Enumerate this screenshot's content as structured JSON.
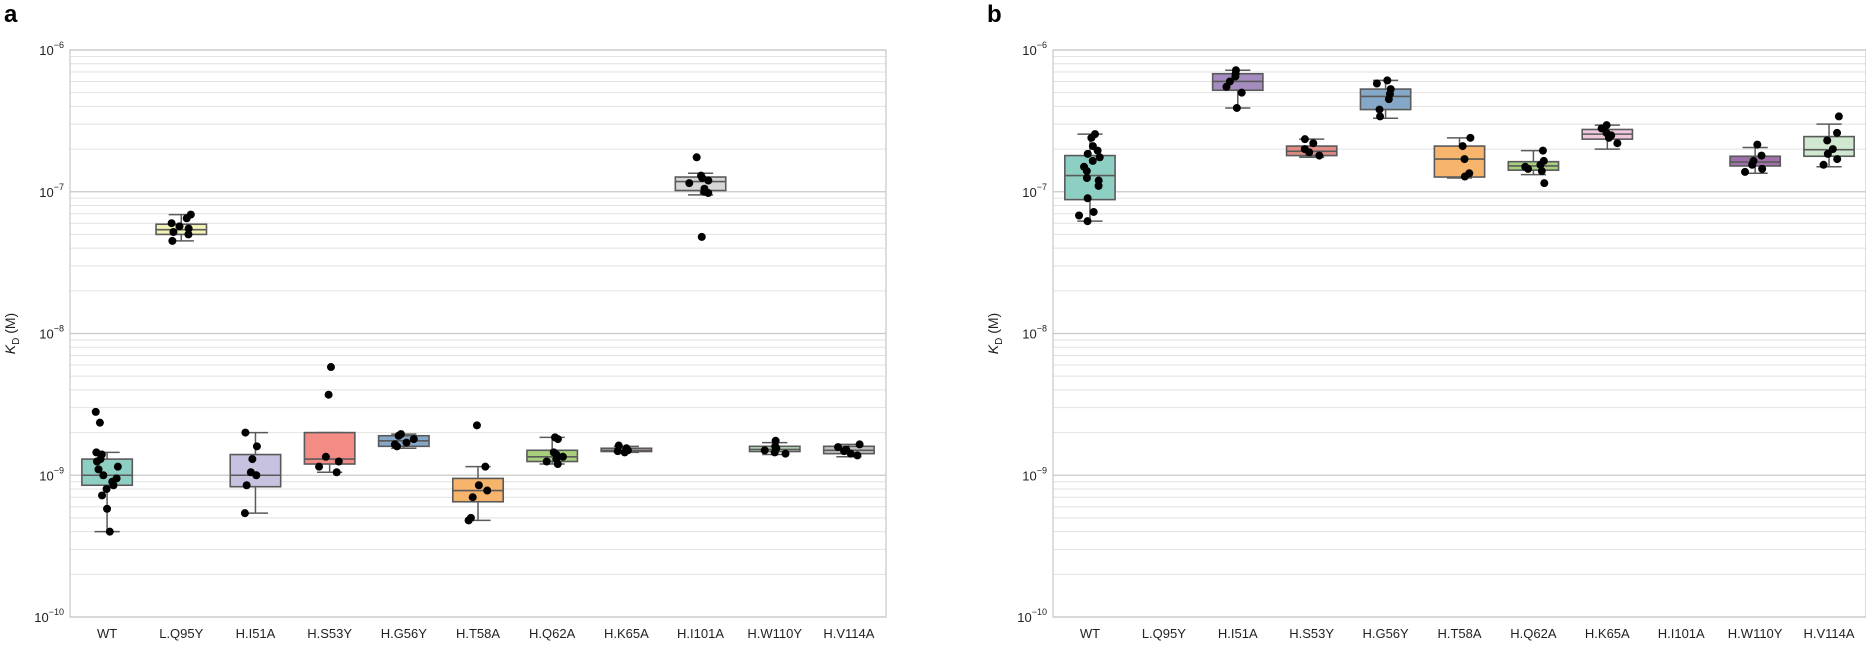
{
  "chart_data": [
    {
      "panel": "a",
      "type": "box",
      "ylabel": "K_D (M)",
      "ylabel_main": "K",
      "ylabel_sub": "D",
      "ylabel_unit": " (M)",
      "yscale": "log",
      "ylim": [
        1e-10,
        1e-06
      ],
      "y_ticks": [
        1e-10,
        1e-09,
        1e-08,
        1e-07,
        1e-06
      ],
      "y_tick_labels": [
        {
          "base": "10",
          "exp": "−10"
        },
        {
          "base": "10",
          "exp": "−9"
        },
        {
          "base": "10",
          "exp": "−8"
        },
        {
          "base": "10",
          "exp": "−7"
        },
        {
          "base": "10",
          "exp": "−6"
        }
      ],
      "grid": true,
      "categories": [
        "WT",
        "L.Q95Y",
        "H.I51A",
        "H.S53Y",
        "H.G56Y",
        "H.T58A",
        "H.Q62A",
        "H.K65A",
        "H.I101A",
        "H.W110Y",
        "H.V114A"
      ],
      "groups": [
        {
          "color": "#8ecfc3",
          "q1": 8.5e-10,
          "median": 1e-09,
          "q3": 1.3e-09,
          "whislo": 4e-10,
          "whishi": 1.45e-09,
          "points": [
            2.8e-09,
            2.35e-09,
            1.45e-09,
            1.4e-09,
            1.3e-09,
            1.25e-09,
            1.15e-09,
            1.1e-09,
            1e-09,
            9.5e-10,
            9e-10,
            8.5e-10,
            8e-10,
            7.2e-10,
            5.8e-10,
            4e-10
          ]
        },
        {
          "color": "#f3f3b8",
          "q1": 5e-08,
          "median": 5.4e-08,
          "q3": 5.9e-08,
          "whislo": 4.5e-08,
          "whishi": 6.9e-08,
          "points": [
            6.9e-08,
            6.5e-08,
            6e-08,
            5.7e-08,
            5.5e-08,
            5.2e-08,
            5e-08,
            4.5e-08
          ]
        },
        {
          "color": "#c6c2e0",
          "q1": 8.3e-10,
          "median": 1e-09,
          "q3": 1.4e-09,
          "whislo": 5.4e-10,
          "whishi": 2e-09,
          "points": [
            2e-09,
            1.6e-09,
            1.3e-09,
            1.05e-09,
            1e-09,
            8.5e-10,
            5.4e-10
          ]
        },
        {
          "color": "#f38c84",
          "q1": 1.2e-09,
          "median": 1.3e-09,
          "q3": 2e-09,
          "whislo": 1.05e-09,
          "whishi": 2e-09,
          "points": [
            5.8e-09,
            3.7e-09,
            1.35e-09,
            1.25e-09,
            1.15e-09,
            1.05e-09
          ]
        },
        {
          "color": "#86a8c8",
          "q1": 1.6e-09,
          "median": 1.75e-09,
          "q3": 1.9e-09,
          "whislo": 1.55e-09,
          "whishi": 1.95e-09,
          "points": [
            1.95e-09,
            1.9e-09,
            1.8e-09,
            1.7e-09,
            1.65e-09,
            1.6e-09
          ]
        },
        {
          "color": "#f6b46c",
          "q1": 6.5e-10,
          "median": 7.8e-10,
          "q3": 9.5e-10,
          "whislo": 4.8e-10,
          "whishi": 1.15e-09,
          "points": [
            2.25e-09,
            1.15e-09,
            8.5e-10,
            7.8e-10,
            7e-10,
            5e-10,
            4.8e-10
          ]
        },
        {
          "color": "#a8d07c",
          "q1": 1.25e-09,
          "median": 1.35e-09,
          "q3": 1.5e-09,
          "whislo": 1.2e-09,
          "whishi": 1.85e-09,
          "points": [
            1.85e-09,
            1.8e-09,
            1.45e-09,
            1.4e-09,
            1.35e-09,
            1.3e-09,
            1.25e-09,
            1.2e-09
          ]
        },
        {
          "color": "#efc8dd",
          "q1": 1.47e-09,
          "median": 1.5e-09,
          "q3": 1.55e-09,
          "whislo": 1.45e-09,
          "whishi": 1.6e-09,
          "points": [
            1.62e-09,
            1.55e-09,
            1.5e-09,
            1.48e-09,
            1.45e-09
          ]
        },
        {
          "color": "#d6d6d6",
          "q1": 1.02e-07,
          "median": 1.18e-07,
          "q3": 1.27e-07,
          "whislo": 9.5e-08,
          "whishi": 1.35e-07,
          "points": [
            1.75e-07,
            1.3e-07,
            1.25e-07,
            1.2e-07,
            1.15e-07,
            1.05e-07,
            1e-07,
            9.8e-08,
            4.8e-08
          ]
        },
        {
          "color": "#b8d8b8",
          "q1": 1.47e-09,
          "median": 1.52e-09,
          "q3": 1.6e-09,
          "whislo": 1.4e-09,
          "whishi": 1.7e-09,
          "points": [
            1.75e-09,
            1.6e-09,
            1.55e-09,
            1.5e-09,
            1.45e-09,
            1.42e-09
          ]
        },
        {
          "color": "#c0c0c0",
          "q1": 1.42e-09,
          "median": 1.5e-09,
          "q3": 1.6e-09,
          "whislo": 1.35e-09,
          "whishi": 1.65e-09,
          "points": [
            1.65e-09,
            1.58e-09,
            1.52e-09,
            1.48e-09,
            1.42e-09,
            1.38e-09
          ]
        }
      ]
    },
    {
      "panel": "b",
      "type": "box",
      "ylabel": "K_D (M)",
      "ylabel_main": "K",
      "ylabel_sub": "D",
      "ylabel_unit": " (M)",
      "yscale": "log",
      "ylim": [
        1e-10,
        1e-06
      ],
      "y_ticks": [
        1e-10,
        1e-09,
        1e-08,
        1e-07,
        1e-06
      ],
      "y_tick_labels": [
        {
          "base": "10",
          "exp": "−10"
        },
        {
          "base": "10",
          "exp": "−9"
        },
        {
          "base": "10",
          "exp": "−8"
        },
        {
          "base": "10",
          "exp": "−7"
        },
        {
          "base": "10",
          "exp": "−6"
        }
      ],
      "grid": true,
      "categories": [
        "WT",
        "L.Q95Y",
        "H.I51A",
        "H.S53Y",
        "H.G56Y",
        "H.T58A",
        "H.Q62A",
        "H.K65A",
        "H.I101A",
        "H.W110Y",
        "H.V114A"
      ],
      "groups": [
        {
          "color": "#8ecfc3",
          "q1": 8.8e-08,
          "median": 1.3e-07,
          "q3": 1.8e-07,
          "whislo": 6.2e-08,
          "whishi": 2.55e-07,
          "points": [
            2.55e-07,
            2.4e-07,
            2.1e-07,
            1.95e-07,
            1.85e-07,
            1.75e-07,
            1.65e-07,
            1.5e-07,
            1.4e-07,
            1.25e-07,
            1.2e-07,
            1.1e-07,
            9e-08,
            7.2e-08,
            6.8e-08,
            6.2e-08
          ]
        },
        null,
        {
          "color": "#a58cc0",
          "q1": 5.2e-07,
          "median": 6e-07,
          "q3": 6.8e-07,
          "whislo": 3.9e-07,
          "whishi": 7.2e-07,
          "points": [
            7.2e-07,
            6.8e-07,
            6.5e-07,
            6e-07,
            5.5e-07,
            5e-07,
            3.9e-07
          ]
        },
        {
          "color": "#e08c84",
          "q1": 1.8e-07,
          "median": 1.93e-07,
          "q3": 2.1e-07,
          "whislo": 1.75e-07,
          "whishi": 2.35e-07,
          "points": [
            2.35e-07,
            2.2e-07,
            2e-07,
            1.9e-07,
            1.8e-07
          ]
        },
        {
          "color": "#86a8c8",
          "q1": 3.8e-07,
          "median": 4.7e-07,
          "q3": 5.3e-07,
          "whislo": 3.3e-07,
          "whishi": 6.1e-07,
          "points": [
            6.1e-07,
            5.8e-07,
            5.3e-07,
            4.9e-07,
            4.5e-07,
            3.8e-07,
            3.4e-07
          ]
        },
        {
          "color": "#f6b46c",
          "q1": 1.27e-07,
          "median": 1.7e-07,
          "q3": 2.1e-07,
          "whislo": 1.25e-07,
          "whishi": 2.4e-07,
          "points": [
            2.4e-07,
            2.1e-07,
            1.7e-07,
            1.35e-07,
            1.28e-07
          ]
        },
        {
          "color": "#a8d07c",
          "q1": 1.42e-07,
          "median": 1.52e-07,
          "q3": 1.63e-07,
          "whislo": 1.32e-07,
          "whishi": 1.95e-07,
          "points": [
            1.95e-07,
            1.65e-07,
            1.55e-07,
            1.5e-07,
            1.45e-07,
            1.4e-07,
            1.15e-07
          ]
        },
        {
          "color": "#efc8dd",
          "q1": 2.35e-07,
          "median": 2.55e-07,
          "q3": 2.75e-07,
          "whislo": 2e-07,
          "whishi": 2.95e-07,
          "points": [
            2.95e-07,
            2.8e-07,
            2.6e-07,
            2.5e-07,
            2.4e-07,
            2.2e-07
          ]
        },
        null,
        {
          "color": "#a070a8",
          "q1": 1.52e-07,
          "median": 1.62e-07,
          "q3": 1.78e-07,
          "whislo": 1.35e-07,
          "whishi": 2.05e-07,
          "points": [
            2.15e-07,
            1.8e-07,
            1.65e-07,
            1.55e-07,
            1.45e-07,
            1.38e-07
          ]
        },
        {
          "color": "#cfe8cf",
          "q1": 1.78e-07,
          "median": 1.98e-07,
          "q3": 2.45e-07,
          "whislo": 1.5e-07,
          "whishi": 3e-07,
          "points": [
            3.4e-07,
            2.6e-07,
            2.3e-07,
            2e-07,
            1.85e-07,
            1.7e-07,
            1.55e-07
          ]
        }
      ]
    }
  ]
}
